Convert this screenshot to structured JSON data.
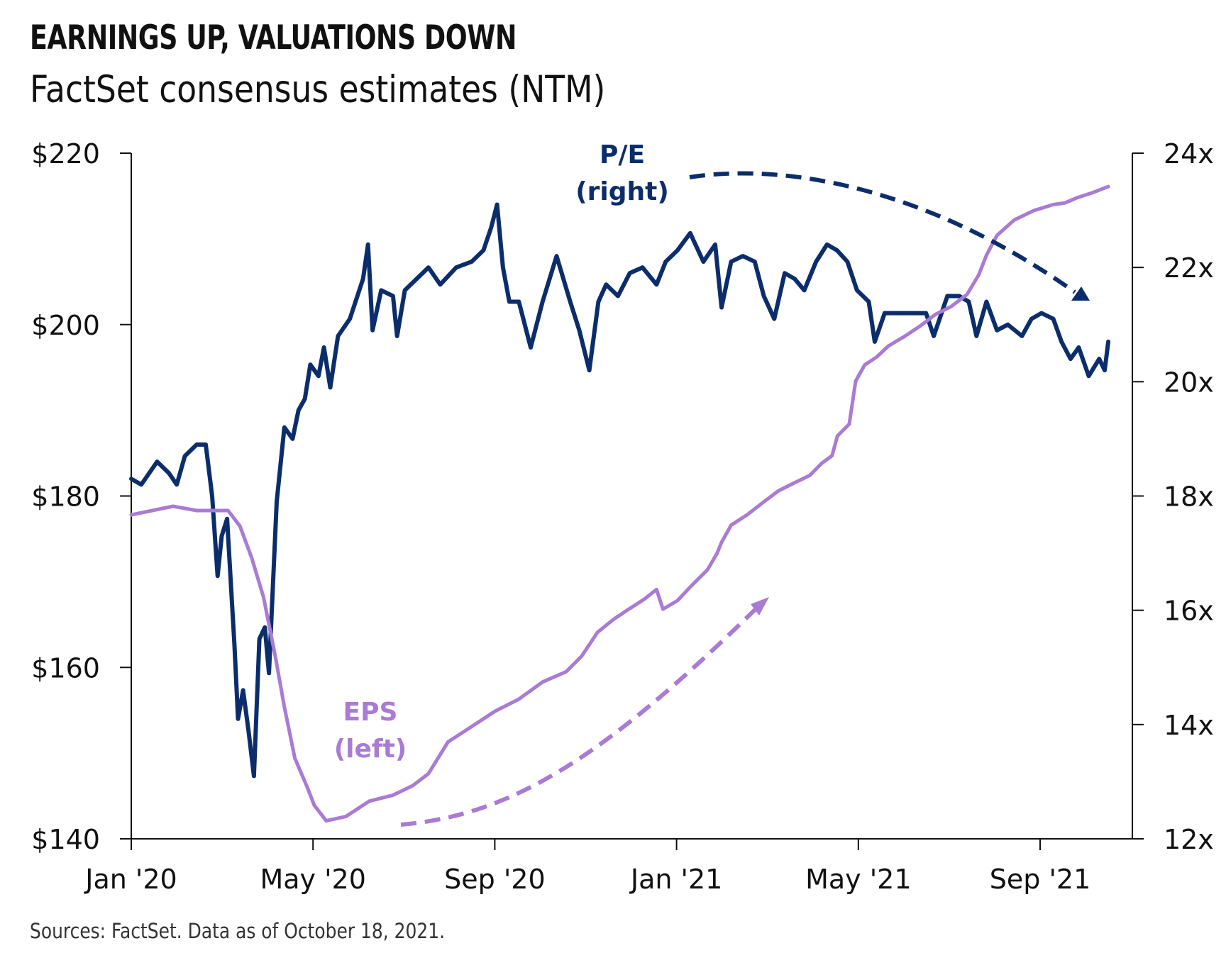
{
  "title": "EARNINGS UP, VALUATIONS DOWN",
  "subtitle": "FactSet consensus estimates (NTM)",
  "source": "Sources: FactSet. Data as of October 18, 2021.",
  "colors": {
    "pe": "#0b2d6b",
    "eps": "#a97bd4",
    "axis": "#111111"
  },
  "chart_data": {
    "type": "line",
    "title": "EARNINGS UP, VALUATIONS DOWN",
    "subtitle": "FactSet consensus estimates (NTM)",
    "xlabel": "",
    "x_unit": "months since Jan 2020",
    "x_ticks": [
      {
        "label": "Jan '20",
        "value": 0
      },
      {
        "label": "May '20",
        "value": 4
      },
      {
        "label": "Sep '20",
        "value": 8
      },
      {
        "label": "Jan '21",
        "value": 12
      },
      {
        "label": "May '21",
        "value": 16
      },
      {
        "label": "Sep '21",
        "value": 20
      }
    ],
    "xlim": [
      0,
      22.2
    ],
    "y_left": {
      "label": "EPS",
      "ylim": [
        140,
        220
      ],
      "ticks": [
        "$140",
        "$160",
        "$180",
        "$200",
        "$220"
      ],
      "tick_values": [
        140,
        160,
        180,
        200,
        220
      ]
    },
    "y_right": {
      "label": "P/E",
      "ylim": [
        12,
        24
      ],
      "ticks": [
        "12x",
        "14x",
        "16x",
        "18x",
        "20x",
        "22x",
        "24x"
      ],
      "tick_values": [
        12,
        14,
        16,
        18,
        20,
        22,
        24
      ]
    },
    "grid": false,
    "annotations": [
      {
        "label_line1": "P/E",
        "label_line2": "(right)",
        "series": "pe",
        "trend": "down"
      },
      {
        "label_line1": "EPS",
        "label_line2": "(left)",
        "series": "eps",
        "trend": "up"
      }
    ],
    "series": [
      {
        "name": "P/E (right)",
        "key": "pe",
        "axis": "right",
        "x": [
          0,
          0.22,
          0.57,
          0.83,
          1.0,
          1.18,
          1.44,
          1.64,
          1.78,
          1.9,
          1.99,
          2.11,
          2.27,
          2.35,
          2.46,
          2.58,
          2.7,
          2.82,
          2.94,
          3.03,
          3.2,
          3.37,
          3.55,
          3.68,
          3.82,
          3.94,
          4.12,
          4.24,
          4.38,
          4.55,
          4.81,
          5.1,
          5.21,
          5.31,
          5.5,
          5.76,
          5.85,
          6.02,
          6.28,
          6.54,
          6.8,
          7.15,
          7.49,
          7.75,
          7.92,
          8.05,
          8.18,
          8.32,
          8.53,
          8.79,
          9.05,
          9.36,
          9.66,
          9.86,
          10.08,
          10.28,
          10.45,
          10.71,
          10.97,
          11.25,
          11.56,
          11.76,
          12.02,
          12.3,
          12.59,
          12.85,
          12.99,
          13.2,
          13.46,
          13.72,
          13.92,
          14.15,
          14.38,
          14.6,
          14.81,
          15.07,
          15.31,
          15.53,
          15.76,
          15.97,
          16.23,
          16.36,
          16.58,
          16.92,
          17.27,
          17.49,
          17.66,
          17.96,
          18.22,
          18.43,
          18.6,
          18.82,
          19.05,
          19.29,
          19.6,
          19.81,
          20.03,
          20.29,
          20.47,
          20.67,
          20.85,
          21.07,
          21.3,
          21.42,
          21.5
        ],
        "values": [
          18.3,
          18.2,
          18.6,
          18.4,
          18.2,
          18.7,
          18.9,
          18.9,
          18.0,
          16.6,
          17.3,
          17.6,
          15.4,
          14.1,
          14.6,
          13.9,
          13.1,
          15.5,
          15.7,
          14.9,
          17.9,
          19.2,
          19.0,
          19.5,
          19.7,
          20.3,
          20.1,
          20.6,
          19.9,
          20.8,
          21.1,
          21.8,
          22.4,
          20.9,
          21.6,
          21.5,
          20.8,
          21.6,
          21.8,
          22.0,
          21.7,
          22.0,
          22.1,
          22.3,
          22.7,
          23.1,
          22.0,
          21.4,
          21.4,
          20.6,
          21.4,
          22.2,
          21.4,
          20.9,
          20.2,
          21.4,
          21.7,
          21.5,
          21.9,
          22.0,
          21.7,
          22.1,
          22.3,
          22.6,
          22.1,
          22.4,
          21.3,
          22.1,
          22.2,
          22.1,
          21.5,
          21.1,
          21.9,
          21.8,
          21.6,
          22.1,
          22.4,
          22.3,
          22.1,
          21.6,
          21.4,
          20.7,
          21.2,
          21.2,
          21.2,
          21.2,
          20.8,
          21.5,
          21.5,
          21.4,
          20.8,
          21.4,
          20.9,
          21.0,
          20.8,
          21.1,
          21.2,
          21.1,
          20.7,
          20.4,
          20.6,
          20.1,
          20.4,
          20.2,
          20.7
        ]
      },
      {
        "name": "EPS (left)",
        "key": "eps",
        "axis": "left",
        "x": [
          0,
          0.92,
          1.44,
          2.13,
          2.39,
          2.65,
          2.91,
          3.17,
          3.37,
          3.6,
          3.86,
          4.03,
          4.29,
          4.72,
          5.24,
          5.76,
          6.19,
          6.54,
          6.97,
          7.49,
          8.01,
          8.53,
          9.05,
          9.57,
          9.91,
          10.26,
          10.61,
          10.95,
          11.3,
          11.56,
          11.7,
          12.02,
          12.34,
          12.68,
          12.89,
          12.99,
          13.2,
          13.55,
          13.89,
          14.24,
          14.58,
          14.93,
          15.19,
          15.42,
          15.54,
          15.8,
          15.94,
          16.14,
          16.4,
          16.66,
          17.01,
          17.35,
          17.7,
          18.04,
          18.39,
          18.65,
          18.82,
          19.05,
          19.43,
          19.86,
          20.29,
          20.55,
          20.81,
          21.16,
          21.5
        ],
        "values": [
          177.8,
          178.8,
          178.3,
          178.3,
          176.5,
          172.8,
          168.2,
          161.3,
          155.4,
          149.4,
          146.2,
          143.9,
          142.1,
          142.6,
          144.4,
          145.1,
          146.2,
          147.6,
          151.3,
          153.1,
          154.9,
          156.3,
          158.3,
          159.5,
          161.3,
          164.1,
          165.6,
          166.8,
          168.0,
          169.1,
          166.8,
          167.8,
          169.6,
          171.4,
          173.3,
          174.6,
          176.6,
          177.8,
          179.2,
          180.6,
          181.5,
          182.4,
          183.8,
          184.7,
          187.0,
          188.4,
          193.4,
          195.3,
          196.2,
          197.5,
          198.6,
          199.8,
          201.2,
          202.1,
          203.5,
          205.8,
          208.1,
          210.4,
          212.2,
          213.3,
          214.0,
          214.2,
          214.8,
          215.4,
          216.1
        ]
      }
    ]
  }
}
